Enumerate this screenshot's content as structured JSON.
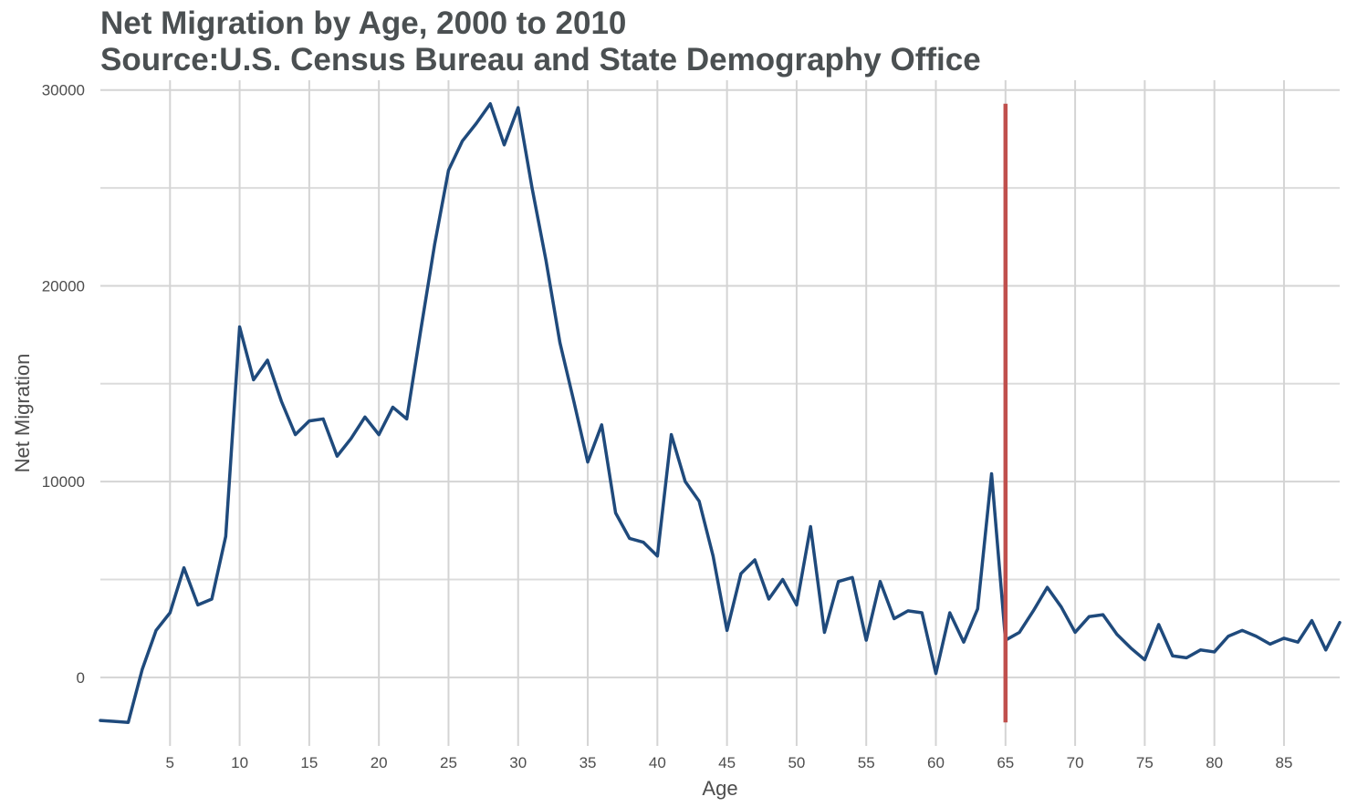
{
  "chart_data": {
    "type": "line",
    "title": "Net Migration by Age, 2000 to 2010",
    "subtitle": "Source:U.S. Census Bureau and State Demography Office",
    "xlabel": "Age",
    "ylabel": "Net Migration",
    "xlim": [
      0,
      89
    ],
    "ylim": [
      -3500,
      30500
    ],
    "x_ticks": [
      5,
      10,
      15,
      20,
      25,
      30,
      35,
      40,
      45,
      50,
      55,
      60,
      65,
      70,
      75,
      80,
      85
    ],
    "y_ticks": [
      0,
      10000,
      20000,
      30000
    ],
    "grid": true,
    "series": [
      {
        "color": "#1f4a7c",
        "x": [
          0,
          1,
          2,
          3,
          4,
          5,
          6,
          7,
          8,
          9,
          10,
          11,
          12,
          13,
          14,
          15,
          16,
          17,
          18,
          19,
          20,
          21,
          22,
          23,
          24,
          25,
          26,
          27,
          28,
          29,
          30,
          31,
          32,
          33,
          34,
          35,
          36,
          37,
          38,
          39,
          40,
          41,
          42,
          43,
          44,
          45,
          46,
          47,
          48,
          49,
          50,
          51,
          52,
          53,
          54,
          55,
          56,
          57,
          58,
          59,
          60,
          61,
          62,
          63,
          64,
          65,
          66,
          67,
          68,
          69,
          70,
          71,
          72,
          73,
          74,
          75,
          76,
          77,
          78,
          79,
          80,
          81,
          82,
          83,
          84,
          85,
          86,
          87,
          88,
          89
        ],
        "values": [
          -2200,
          -2250,
          -2300,
          400,
          2400,
          3300,
          5600,
          3700,
          4000,
          7200,
          17900,
          15200,
          16200,
          14100,
          12400,
          13100,
          13200,
          11300,
          12200,
          13300,
          12400,
          13800,
          13200,
          17700,
          22100,
          25900,
          27400,
          28300,
          29300,
          27200,
          29100,
          25000,
          21300,
          17100,
          14100,
          11000,
          12900,
          8400,
          7100,
          6900,
          6200,
          12400,
          10000,
          9000,
          6200,
          2400,
          5300,
          6000,
          4000,
          5000,
          3700,
          7700,
          2300,
          4900,
          5100,
          1900,
          4900,
          3000,
          3400,
          3300,
          200,
          3300,
          1800,
          3500,
          10400,
          1900,
          2300,
          3400,
          4600,
          3600,
          2300,
          3100,
          3200,
          2200,
          1500,
          900,
          2700,
          1100,
          1000,
          1400,
          1300,
          2100,
          2400,
          2100,
          1700,
          2000,
          1800,
          2900,
          1400,
          2800
        ]
      }
    ],
    "vline": {
      "x": 65,
      "y_from": -2300,
      "y_to": 29300,
      "color": "#c0504d"
    }
  }
}
